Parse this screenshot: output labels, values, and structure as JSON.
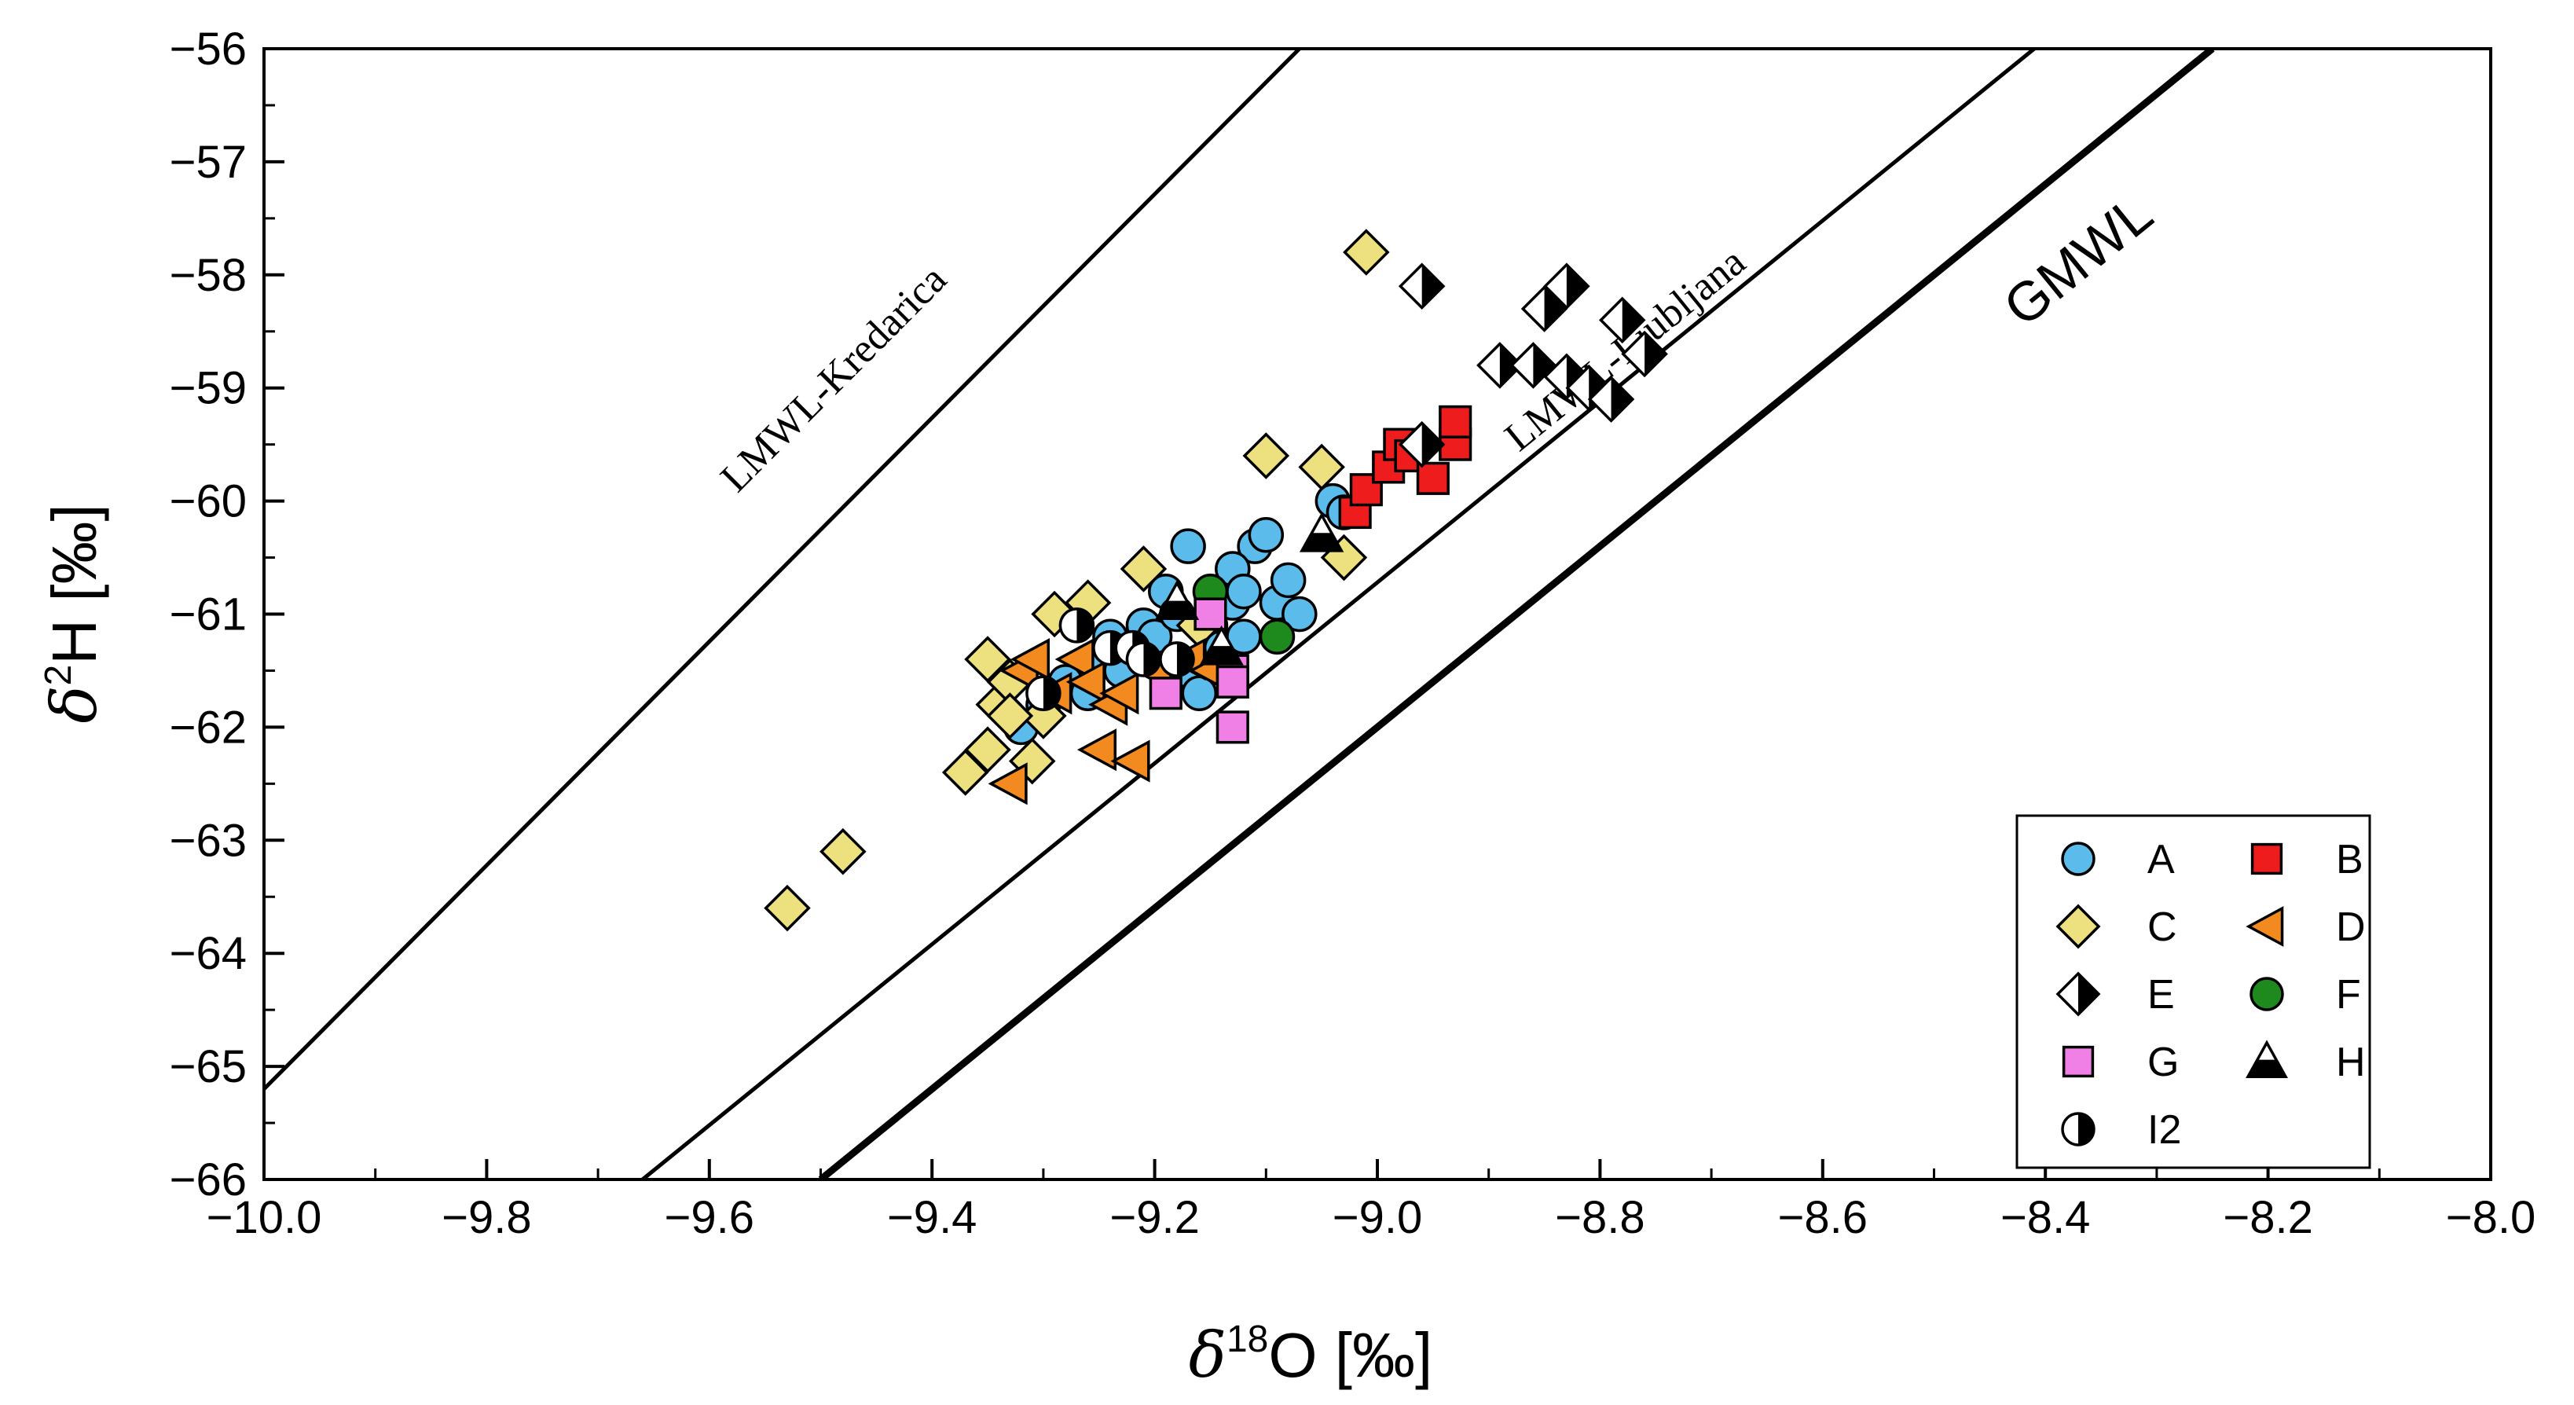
{
  "chart_data": {
    "type": "scatter",
    "xlabel": {
      "symbol": "δ",
      "sup": "18",
      "rest": "O [‰]"
    },
    "ylabel": {
      "symbol": "δ",
      "sup": "2",
      "rest": "H [‰]"
    },
    "xlim": [
      -10.0,
      -8.0
    ],
    "ylim": [
      -66,
      -56
    ],
    "xticks": [
      -10.0,
      -9.8,
      -9.6,
      -9.4,
      -9.2,
      -9.0,
      -8.8,
      -8.6,
      -8.4,
      -8.2,
      -8.0
    ],
    "xtick_labels": [
      "−10.0",
      "−9.8",
      "−9.6",
      "−9.4",
      "−9.2",
      "−9.0",
      "−8.8",
      "−8.6",
      "−8.4",
      "−8.2",
      "−8.0"
    ],
    "yticks": [
      -66,
      -65,
      -64,
      -63,
      -62,
      -61,
      -60,
      -59,
      -58,
      -57,
      -56
    ],
    "ytick_labels": [
      "−66",
      "−65",
      "−64",
      "−63",
      "−62",
      "−61",
      "−60",
      "−59",
      "−58",
      "−57",
      "−56"
    ],
    "grid": false,
    "legend_position": "bottom-right",
    "reference_lines": [
      {
        "label": "LMWL-Kredarica",
        "points": [
          [
            -10.0,
            -65.2
          ],
          [
            -9.07,
            -56.0
          ]
        ],
        "label_anchor": [
          -9.48,
          -59.0
        ],
        "weight": "normal"
      },
      {
        "label": "LMWL-Ljubljana",
        "points": [
          [
            -9.66,
            -66.0
          ],
          [
            -8.41,
            -56.0
          ]
        ],
        "label_anchor": [
          -8.77,
          -58.75
        ],
        "weight": "normal"
      },
      {
        "label": "GMWL",
        "points": [
          [
            -9.5,
            -66.0
          ],
          [
            -8.25,
            -56.0
          ]
        ],
        "label_anchor": [
          -8.36,
          -58.0
        ],
        "weight": "bold"
      }
    ],
    "series": [
      {
        "name": "A",
        "marker": "circle",
        "color": "#5bbcec",
        "points": [
          [
            -9.3,
            -61.8
          ],
          [
            -9.28,
            -61.6
          ],
          [
            -9.26,
            -61.7
          ],
          [
            -9.25,
            -61.4
          ],
          [
            -9.24,
            -61.2
          ],
          [
            -9.23,
            -61.5
          ],
          [
            -9.22,
            -61.3
          ],
          [
            -9.21,
            -61.1
          ],
          [
            -9.2,
            -61.2
          ],
          [
            -9.19,
            -60.8
          ],
          [
            -9.18,
            -61.0
          ],
          [
            -9.17,
            -61.5
          ],
          [
            -9.16,
            -61.7
          ],
          [
            -9.15,
            -61.1
          ],
          [
            -9.14,
            -61.3
          ],
          [
            -9.13,
            -60.9
          ],
          [
            -9.12,
            -61.2
          ],
          [
            -9.11,
            -60.4
          ],
          [
            -9.1,
            -60.3
          ],
          [
            -9.09,
            -60.9
          ],
          [
            -9.08,
            -60.7
          ],
          [
            -9.07,
            -61.0
          ],
          [
            -9.04,
            -60.0
          ],
          [
            -9.03,
            -60.1
          ],
          [
            -9.17,
            -60.4
          ],
          [
            -9.13,
            -60.6
          ],
          [
            -9.12,
            -60.8
          ],
          [
            -9.32,
            -62.0
          ]
        ]
      },
      {
        "name": "B",
        "marker": "square",
        "color": "#ee1c1c",
        "points": [
          [
            -9.02,
            -60.1
          ],
          [
            -9.01,
            -59.9
          ],
          [
            -8.99,
            -59.7
          ],
          [
            -8.98,
            -59.5
          ],
          [
            -8.97,
            -59.6
          ],
          [
            -8.95,
            -59.8
          ],
          [
            -8.93,
            -59.5
          ],
          [
            -8.93,
            -59.3
          ]
        ]
      },
      {
        "name": "C",
        "marker": "diamond",
        "color": "#ede07e",
        "points": [
          [
            -9.53,
            -63.6
          ],
          [
            -9.48,
            -63.1
          ],
          [
            -9.37,
            -62.4
          ],
          [
            -9.35,
            -62.2
          ],
          [
            -9.34,
            -61.8
          ],
          [
            -9.35,
            -61.4
          ],
          [
            -9.33,
            -61.6
          ],
          [
            -9.31,
            -62.3
          ],
          [
            -9.3,
            -61.9
          ],
          [
            -9.29,
            -61.0
          ],
          [
            -9.26,
            -60.9
          ],
          [
            -9.21,
            -60.6
          ],
          [
            -9.1,
            -59.6
          ],
          [
            -9.05,
            -59.7
          ],
          [
            -9.03,
            -60.5
          ],
          [
            -9.01,
            -57.8
          ],
          [
            -9.16,
            -61.1
          ],
          [
            -9.33,
            -61.9
          ]
        ]
      },
      {
        "name": "D",
        "marker": "triangle-left",
        "color": "#f28a1f",
        "points": [
          [
            -9.33,
            -62.5
          ],
          [
            -9.32,
            -61.5
          ],
          [
            -9.31,
            -61.4
          ],
          [
            -9.29,
            -61.7
          ],
          [
            -9.27,
            -61.4
          ],
          [
            -9.26,
            -61.6
          ],
          [
            -9.25,
            -62.2
          ],
          [
            -9.24,
            -61.8
          ],
          [
            -9.23,
            -61.7
          ],
          [
            -9.22,
            -62.3
          ],
          [
            -9.2,
            -61.5
          ],
          [
            -9.17,
            -61.4
          ],
          [
            -9.15,
            -61.5
          ]
        ]
      },
      {
        "name": "E",
        "marker": "diamond-half",
        "color": "#000000",
        "points": [
          [
            -8.96,
            -58.1
          ],
          [
            -8.96,
            -59.5
          ],
          [
            -8.89,
            -58.8
          ],
          [
            -8.86,
            -58.8
          ],
          [
            -8.85,
            -58.3
          ],
          [
            -8.83,
            -58.1
          ],
          [
            -8.83,
            -58.9
          ],
          [
            -8.81,
            -59.0
          ],
          [
            -8.79,
            -59.1
          ],
          [
            -8.78,
            -58.4
          ],
          [
            -8.76,
            -58.7
          ]
        ]
      },
      {
        "name": "F",
        "marker": "circle",
        "color": "#1e8a1e",
        "points": [
          [
            -9.15,
            -60.8
          ],
          [
            -9.09,
            -61.2
          ],
          [
            -9.18,
            -61.4
          ]
        ]
      },
      {
        "name": "G",
        "marker": "square",
        "color": "#f07fe6",
        "points": [
          [
            -9.19,
            -61.7
          ],
          [
            -9.15,
            -61.0
          ],
          [
            -9.13,
            -61.5
          ],
          [
            -9.13,
            -61.6
          ],
          [
            -9.13,
            -62.0
          ]
        ]
      },
      {
        "name": "H",
        "marker": "triangle-half",
        "color": "#000000",
        "points": [
          [
            -9.18,
            -60.9
          ],
          [
            -9.14,
            -61.3
          ],
          [
            -9.05,
            -60.3
          ]
        ]
      },
      {
        "name": "I2",
        "marker": "circle-half",
        "color": "#000000",
        "points": [
          [
            -9.3,
            -61.7
          ],
          [
            -9.27,
            -61.1
          ],
          [
            -9.24,
            -61.3
          ],
          [
            -9.22,
            -61.3
          ],
          [
            -9.21,
            -61.4
          ],
          [
            -9.18,
            -61.4
          ]
        ]
      }
    ]
  }
}
